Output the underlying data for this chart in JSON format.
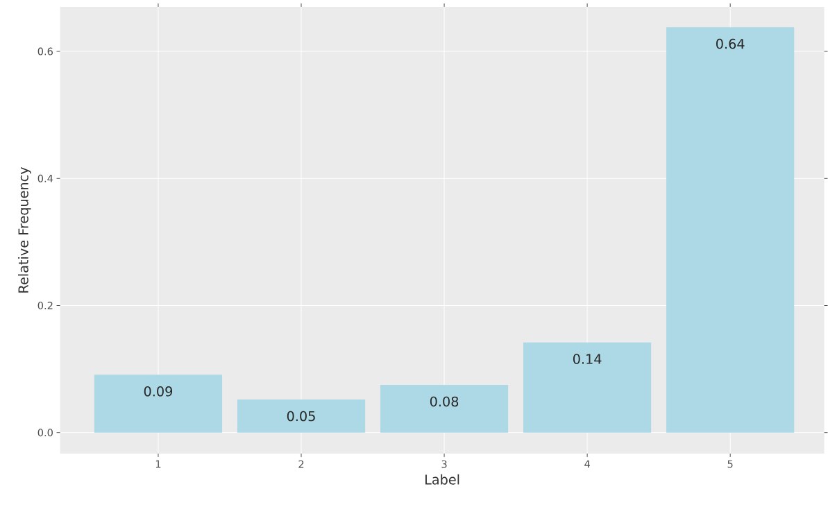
{
  "chart_data": {
    "type": "bar",
    "xlabel": "Label",
    "ylabel": "Relative Frequency",
    "categories": [
      "1",
      "2",
      "3",
      "4",
      "5"
    ],
    "values": [
      0.091,
      0.052,
      0.075,
      0.142,
      0.638
    ],
    "value_labels": [
      "0.09",
      "0.05",
      "0.08",
      "0.14",
      "0.64"
    ],
    "color": "#add8e6",
    "ylim": [
      -0.033,
      0.67
    ],
    "yticks": [
      {
        "value": 0,
        "label": "0.0"
      },
      {
        "value": 0.2,
        "label": "0.2"
      },
      {
        "value": 0.4,
        "label": "0.4"
      },
      {
        "value": 0.6,
        "label": "0.6"
      }
    ],
    "grid": true
  }
}
